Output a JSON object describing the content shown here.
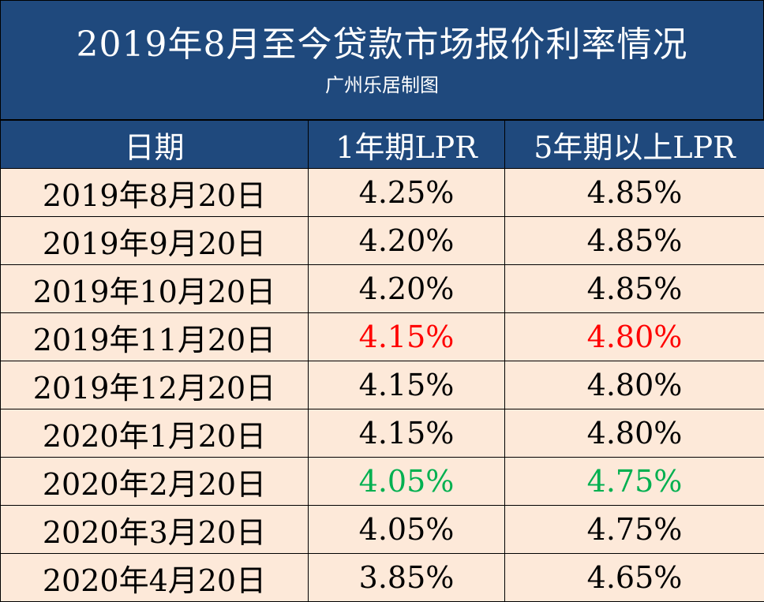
{
  "title": {
    "main": "2019年8月至今贷款市场报价利率情况",
    "sub": "广州乐居制图"
  },
  "colors": {
    "header_bg": "#1f497d",
    "row_bg": "#fde9d9",
    "text_default": "#000000",
    "text_decrease_red": "#ff0000",
    "text_decrease_green": "#00b050"
  },
  "table": {
    "headers": [
      "日期",
      "1年期LPR",
      "5年期以上LPR"
    ],
    "rows": [
      {
        "date": "2019年8月20日",
        "lpr1y": "4.25%",
        "lpr5y": "4.85%",
        "highlight": ""
      },
      {
        "date": "2019年9月20日",
        "lpr1y": "4.20%",
        "lpr5y": "4.85%",
        "highlight": ""
      },
      {
        "date": "2019年10月20日",
        "lpr1y": "4.20%",
        "lpr5y": "4.85%",
        "highlight": ""
      },
      {
        "date": "2019年11月20日",
        "lpr1y": "4.15%",
        "lpr5y": "4.80%",
        "highlight": "red"
      },
      {
        "date": "2019年12月20日",
        "lpr1y": "4.15%",
        "lpr5y": "4.80%",
        "highlight": ""
      },
      {
        "date": "2020年1月20日",
        "lpr1y": "4.15%",
        "lpr5y": "4.80%",
        "highlight": ""
      },
      {
        "date": "2020年2月20日",
        "lpr1y": "4.05%",
        "lpr5y": "4.75%",
        "highlight": "green"
      },
      {
        "date": "2020年3月20日",
        "lpr1y": "4.05%",
        "lpr5y": "4.75%",
        "highlight": ""
      },
      {
        "date": "2020年4月20日",
        "lpr1y": "3.85%",
        "lpr5y": "4.65%",
        "highlight": ""
      }
    ]
  }
}
